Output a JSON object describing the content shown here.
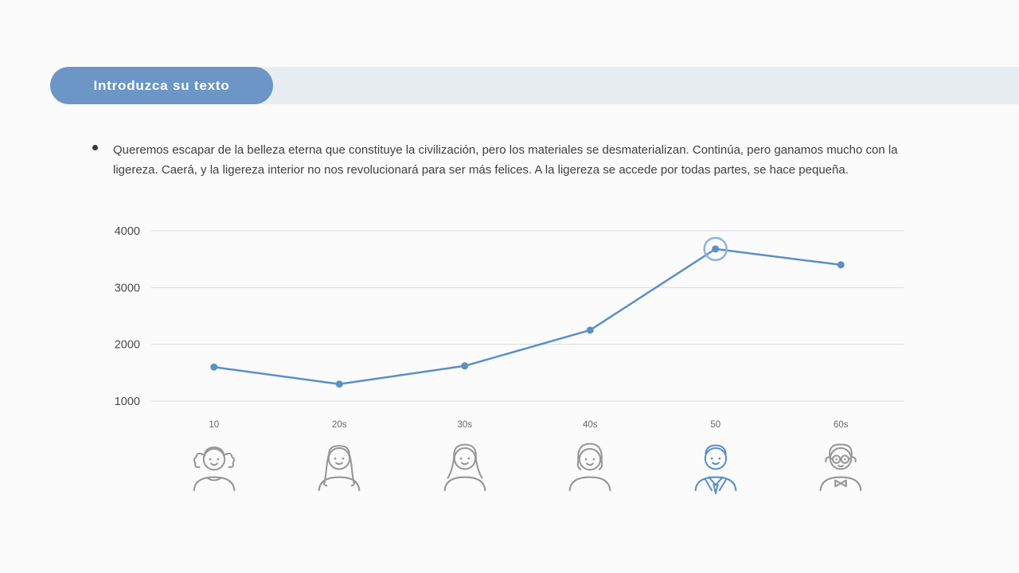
{
  "title_pill": {
    "label": "Introduzca su texto"
  },
  "bullet": {
    "text": "Queremos escapar de la belleza eterna que constituye la civilización, pero los materiales se desmaterializan. Continúa, pero ganamos mucho con la ligereza. Caerá, y la ligereza interior no nos revolucionará para ser más felices. A la ligereza se accede por todas partes, se hace pequeña."
  },
  "chart_data": {
    "type": "line",
    "categories": [
      "10",
      "20s",
      "30s",
      "40s",
      "50",
      "60s"
    ],
    "values": [
      1600,
      1300,
      1620,
      2250,
      3680,
      3400
    ],
    "yticks": [
      4000,
      3000,
      2000,
      1000
    ],
    "ylim": [
      1000,
      4000
    ],
    "grid": true,
    "legend": "none",
    "title": "",
    "xlabel": "",
    "ylabel": "",
    "line_color": "#5b8fc7",
    "highlight_index": 4,
    "highlight_ring_color": "#8ab4dc",
    "icon_colors": [
      "#979797",
      "#979797",
      "#979797",
      "#979797",
      "#5b8fc7",
      "#979797"
    ]
  },
  "colors": {
    "accent_blue": "#6b96c5",
    "banner_strip": "#e8edf2",
    "background": "#fbfbfc"
  }
}
